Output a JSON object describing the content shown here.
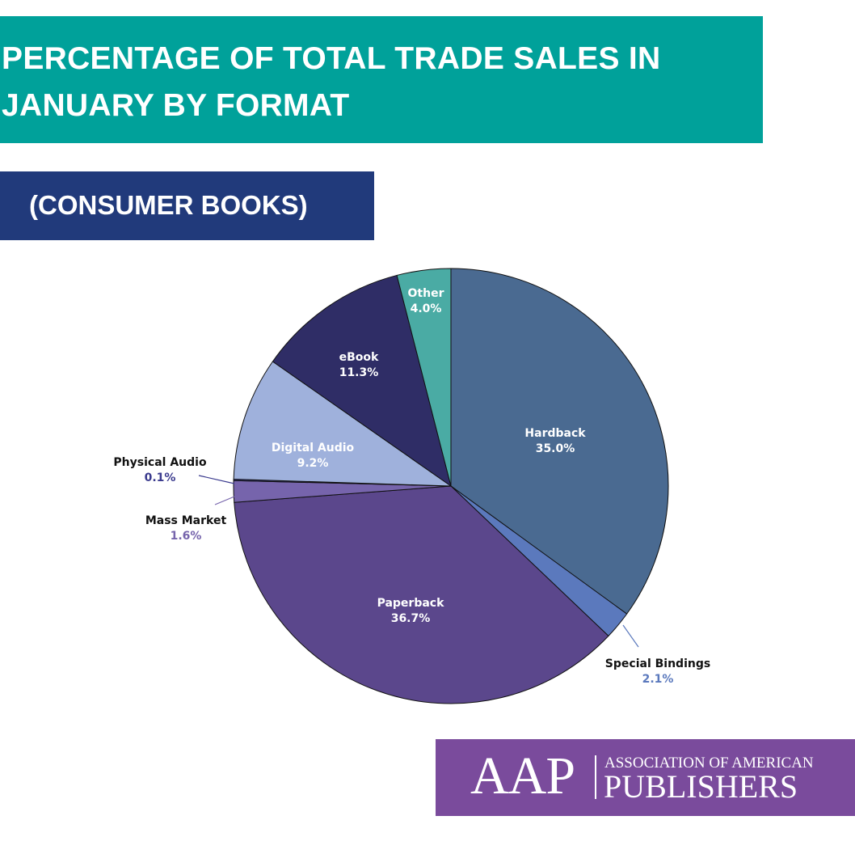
{
  "header": {
    "title": "PERCENTAGE OF TOTAL TRADE SALES IN JANUARY  BY FORMAT",
    "subtitle": "(CONSUMER BOOKS)"
  },
  "logo": {
    "mark": "AAP",
    "line1": "ASSOCIATION OF AMERICAN",
    "line2": "PUBLISHERS"
  },
  "colors": {
    "title_banner": "#00a19a",
    "subtitle_banner": "#213a7b",
    "logo_box": "#7a4b9c"
  },
  "chart_data": {
    "type": "pie",
    "slices": [
      {
        "name": "Hardback",
        "value": 35.0,
        "label": "35.0%",
        "color": "#4a6a91",
        "label_color": "#ffffff"
      },
      {
        "name": "Special Bindings",
        "value": 2.1,
        "label": "2.1%",
        "color": "#5b79bd",
        "label_color": "#5b79bd"
      },
      {
        "name": "Paperback",
        "value": 36.7,
        "label": "36.7%",
        "color": "#5b478c",
        "label_color": "#ffffff"
      },
      {
        "name": "Mass Market",
        "value": 1.6,
        "label": "1.6%",
        "color": "#7664ac",
        "label_color": "#7664ac"
      },
      {
        "name": "Physical Audio",
        "value": 0.1,
        "label": "0.1%",
        "color": "#3b3b8e",
        "label_color": "#3b3b8e"
      },
      {
        "name": "Digital Audio",
        "value": 9.2,
        "label": "9.2%",
        "color": "#9fb1dc",
        "label_color": "#ffffff"
      },
      {
        "name": "eBook",
        "value": 11.3,
        "label": "11.3%",
        "color": "#2f2d66",
        "label_color": "#ffffff"
      },
      {
        "name": "Other",
        "value": 4.0,
        "label": "4.0%",
        "color": "#4aaba4",
        "label_color": "#ffffff"
      }
    ]
  }
}
